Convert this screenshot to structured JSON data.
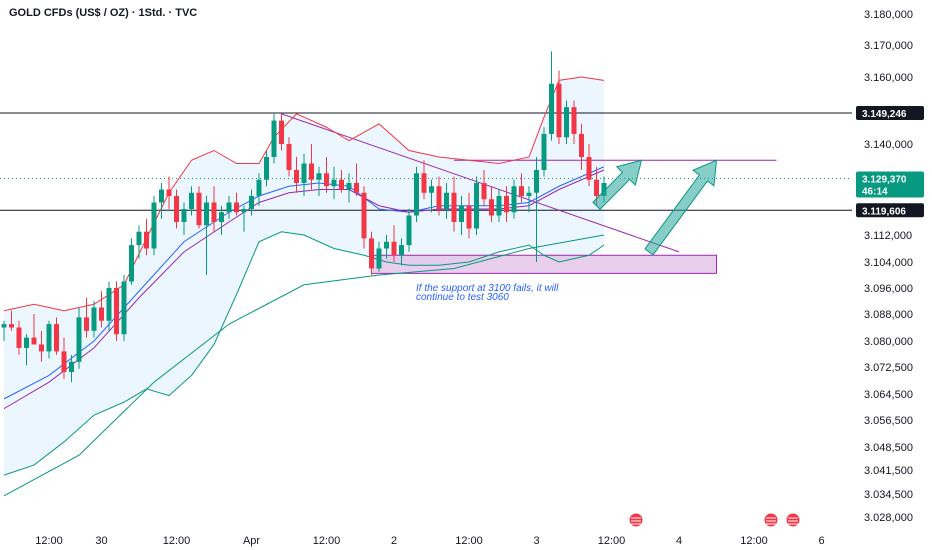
{
  "chart_data": {
    "type": "candlestick",
    "title": "GOLD CFDs (US$ / OZ) · 1Std. · TVC",
    "ylim": [
      3026000,
      3182000
    ],
    "y_ticks": [
      {
        "value": 3180000,
        "label": "3.180,000"
      },
      {
        "value": 3170000,
        "label": "3.170,000"
      },
      {
        "value": 3160000,
        "label": "3.160,000"
      },
      {
        "value": 3140000,
        "label": "3.140,000"
      },
      {
        "value": 3112000,
        "label": "3.112,000"
      },
      {
        "value": 3104000,
        "label": "3.104,000"
      },
      {
        "value": 3096000,
        "label": "3.096,000"
      },
      {
        "value": 3088000,
        "label": "3.088,000"
      },
      {
        "value": 3080000,
        "label": "3.080,000"
      },
      {
        "value": 3072500,
        "label": "3.072,500"
      },
      {
        "value": 3064500,
        "label": "3.064,500"
      },
      {
        "value": 3056500,
        "label": "3.056,500"
      },
      {
        "value": 3048500,
        "label": "3.048,500"
      },
      {
        "value": 3041500,
        "label": "3.041,500"
      },
      {
        "value": 3034500,
        "label": "3.034,500"
      },
      {
        "value": 3028000,
        "label": "3.028,000"
      }
    ],
    "x_ticks": [
      {
        "index": 6,
        "label": "12:00"
      },
      {
        "index": 13,
        "label": "30"
      },
      {
        "index": 23,
        "label": "12:00"
      },
      {
        "index": 33,
        "label": "Apr"
      },
      {
        "index": 43,
        "label": "12:00"
      },
      {
        "index": 52,
        "label": "2"
      },
      {
        "index": 62,
        "label": "12:00"
      },
      {
        "index": 71,
        "label": "3"
      },
      {
        "index": 81,
        "label": "12:00"
      },
      {
        "index": 90,
        "label": "4"
      },
      {
        "index": 100,
        "label": "12:00"
      },
      {
        "index": 109,
        "label": "6"
      }
    ],
    "x_range": [
      0,
      114
    ],
    "candles": [
      [
        3084,
        3086,
        3080,
        3085
      ],
      [
        3085,
        3089,
        3083,
        3084
      ],
      [
        3084,
        3086,
        3076,
        3078
      ],
      [
        3078,
        3082,
        3073,
        3081
      ],
      [
        3081,
        3088,
        3079,
        3079
      ],
      [
        3079,
        3083,
        3074,
        3077
      ],
      [
        3077,
        3086,
        3075,
        3085
      ],
      [
        3085,
        3087,
        3076,
        3077
      ],
      [
        3077,
        3081,
        3069,
        3071
      ],
      [
        3071,
        3076,
        3068,
        3074
      ],
      [
        3074,
        3090,
        3072,
        3087
      ],
      [
        3087,
        3093,
        3081,
        3083
      ],
      [
        3083,
        3092,
        3081,
        3090
      ],
      [
        3090,
        3095,
        3084,
        3086
      ],
      [
        3086,
        3098,
        3083,
        3096
      ],
      [
        3096,
        3098,
        3080,
        3082
      ],
      [
        3082,
        3100,
        3080,
        3098
      ],
      [
        3098,
        3111,
        3097,
        3109
      ],
      [
        3109,
        3115,
        3105,
        3113
      ],
      [
        3113,
        3117,
        3106,
        3108
      ],
      [
        3108,
        3124,
        3106,
        3122
      ],
      [
        3122,
        3128,
        3117,
        3126
      ],
      [
        3126,
        3130,
        3120,
        3124
      ],
      [
        3124,
        3126,
        3114,
        3116
      ],
      [
        3116,
        3122,
        3112,
        3120
      ],
      [
        3120,
        3127,
        3118,
        3125
      ],
      [
        3125,
        3127,
        3114,
        3115
      ],
      [
        3115,
        3124,
        3100,
        3122
      ],
      [
        3122,
        3127,
        3113,
        3116
      ],
      [
        3116,
        3121,
        3112,
        3119
      ],
      [
        3119,
        3124,
        3117,
        3122
      ],
      [
        3122,
        3125,
        3118,
        3119
      ],
      [
        3119,
        3121,
        3113,
        3120
      ],
      [
        3120,
        3126,
        3118,
        3124
      ],
      [
        3124,
        3131,
        3121,
        3129
      ],
      [
        3129,
        3138,
        3127,
        3136
      ],
      [
        3136,
        3149,
        3134,
        3147
      ],
      [
        3147,
        3149,
        3138,
        3140
      ],
      [
        3140,
        3142,
        3130,
        3132
      ],
      [
        3132,
        3136,
        3125,
        3128
      ],
      [
        3128,
        3137,
        3124,
        3134
      ],
      [
        3134,
        3140,
        3126,
        3129
      ],
      [
        3129,
        3133,
        3124,
        3131
      ],
      [
        3131,
        3136,
        3125,
        3127
      ],
      [
        3127,
        3133,
        3123,
        3129
      ],
      [
        3129,
        3132,
        3125,
        3126
      ],
      [
        3126,
        3131,
        3122,
        3128
      ],
      [
        3128,
        3134,
        3124,
        3125
      ],
      [
        3125,
        3127,
        3108,
        3111
      ],
      [
        3111,
        3113,
        3100,
        3102
      ],
      [
        3102,
        3110,
        3101,
        3108
      ],
      [
        3108,
        3112,
        3105,
        3110
      ],
      [
        3110,
        3115,
        3104,
        3106
      ],
      [
        3106,
        3111,
        3103,
        3109
      ],
      [
        3109,
        3120,
        3107,
        3118
      ],
      [
        3118,
        3133,
        3116,
        3131
      ],
      [
        3131,
        3135,
        3123,
        3125
      ],
      [
        3125,
        3129,
        3119,
        3127
      ],
      [
        3127,
        3130,
        3118,
        3120
      ],
      [
        3120,
        3128,
        3117,
        3125
      ],
      [
        3125,
        3130,
        3113,
        3116
      ],
      [
        3116,
        3124,
        3112,
        3121
      ],
      [
        3121,
        3125,
        3111,
        3114
      ],
      [
        3114,
        3130,
        3112,
        3128
      ],
      [
        3128,
        3132,
        3121,
        3123
      ],
      [
        3123,
        3127,
        3116,
        3118
      ],
      [
        3118,
        3126,
        3116,
        3124
      ],
      [
        3124,
        3127,
        3116,
        3119
      ],
      [
        3119,
        3129,
        3117,
        3127
      ],
      [
        3127,
        3131,
        3122,
        3124
      ],
      [
        3124,
        3127,
        3119,
        3125
      ],
      [
        3125,
        3136,
        3104,
        3132
      ],
      [
        3132,
        3145,
        3130,
        3143
      ],
      [
        3143,
        3168,
        3141,
        3158
      ],
      [
        3158,
        3162,
        3140,
        3142
      ],
      [
        3142,
        3153,
        3140,
        3151
      ],
      [
        3151,
        3153,
        3140,
        3143
      ],
      [
        3143,
        3146,
        3132,
        3136
      ],
      [
        3136,
        3140,
        3127,
        3129
      ],
      [
        3129,
        3133,
        3121,
        3124
      ],
      [
        3124,
        3130,
        3122,
        3128
      ]
    ],
    "series": [
      {
        "name": "",
        "color": "#f23645",
        "values": [
          [
            0,
            3089
          ],
          [
            4,
            3091
          ],
          [
            8,
            3089
          ],
          [
            12,
            3091
          ],
          [
            16,
            3097
          ],
          [
            19,
            3111
          ],
          [
            22,
            3125
          ],
          [
            25,
            3135
          ],
          [
            28,
            3138
          ],
          [
            31,
            3134
          ],
          [
            34,
            3134
          ],
          [
            36,
            3142
          ],
          [
            39,
            3149
          ],
          [
            43,
            3145
          ],
          [
            46,
            3141
          ],
          [
            50,
            3146
          ],
          [
            54,
            3138
          ],
          [
            58,
            3136
          ],
          [
            62,
            3135
          ],
          [
            66,
            3134
          ],
          [
            70,
            3136
          ],
          [
            72,
            3148
          ],
          [
            74,
            3159
          ],
          [
            77,
            3160
          ],
          [
            80,
            3159
          ]
        ]
      },
      {
        "name": "",
        "color": "#089981",
        "values": [
          [
            0,
            3040
          ],
          [
            4,
            3043
          ],
          [
            8,
            3050
          ],
          [
            12,
            3058
          ],
          [
            16,
            3062
          ],
          [
            19,
            3066
          ],
          [
            22,
            3064
          ],
          [
            25,
            3070
          ],
          [
            28,
            3079
          ],
          [
            31,
            3094
          ],
          [
            34,
            3110
          ],
          [
            37,
            3113
          ],
          [
            40,
            3112
          ],
          [
            44,
            3108
          ],
          [
            48,
            3106
          ],
          [
            51,
            3104
          ],
          [
            54,
            3103
          ],
          [
            58,
            3103
          ],
          [
            62,
            3104
          ],
          [
            66,
            3107
          ],
          [
            70,
            3109
          ],
          [
            72,
            3106
          ],
          [
            74,
            3104
          ],
          [
            78,
            3106
          ],
          [
            80,
            3109
          ]
        ]
      },
      {
        "name": "",
        "color": "#2962ff",
        "values": [
          [
            0,
            3063
          ],
          [
            6,
            3070
          ],
          [
            12,
            3080
          ],
          [
            18,
            3095
          ],
          [
            24,
            3110
          ],
          [
            30,
            3119
          ],
          [
            34,
            3124
          ],
          [
            38,
            3127
          ],
          [
            42,
            3128
          ],
          [
            46,
            3127
          ],
          [
            50,
            3120
          ],
          [
            54,
            3119
          ],
          [
            58,
            3121
          ],
          [
            62,
            3121
          ],
          [
            66,
            3121
          ],
          [
            70,
            3122
          ],
          [
            74,
            3127
          ],
          [
            78,
            3131
          ],
          [
            80,
            3133
          ]
        ]
      },
      {
        "name": "",
        "color": "#9c27b0",
        "values": [
          [
            0,
            3060
          ],
          [
            6,
            3068
          ],
          [
            12,
            3078
          ],
          [
            18,
            3093
          ],
          [
            24,
            3107
          ],
          [
            30,
            3116
          ],
          [
            34,
            3122
          ],
          [
            38,
            3125
          ],
          [
            42,
            3126
          ],
          [
            46,
            3126
          ],
          [
            50,
            3121
          ],
          [
            54,
            3119
          ],
          [
            58,
            3120
          ],
          [
            62,
            3120
          ],
          [
            66,
            3120
          ],
          [
            70,
            3121
          ],
          [
            74,
            3126
          ],
          [
            78,
            3130
          ],
          [
            80,
            3132
          ]
        ]
      },
      {
        "name": "",
        "color": "#089981",
        "values": [
          [
            0,
            3034
          ],
          [
            10,
            3046
          ],
          [
            20,
            3068
          ],
          [
            30,
            3085
          ],
          [
            40,
            3097
          ],
          [
            50,
            3100
          ],
          [
            60,
            3102
          ],
          [
            70,
            3108
          ],
          [
            80,
            3112
          ]
        ]
      }
    ],
    "horizontal_lines": [
      {
        "value": 3149246,
        "label": "3.149,246",
        "color": "#131722"
      },
      {
        "value": 3119606,
        "label": "3.119,606",
        "color": "#131722"
      }
    ],
    "current_price": {
      "value": 3129370,
      "label": "3.129,370",
      "countdown": "46:14",
      "color": "#089981"
    },
    "annotations": {
      "note": "If the support at 3100 fails, it will continue to test 3060",
      "support_zone": [
        3100500,
        3106000
      ],
      "support_zone_x": [
        49,
        95
      ],
      "trendline": {
        "from": [
          37,
          3149
        ],
        "to": [
          90,
          3107
        ]
      },
      "resistance_line": {
        "value": 3135000,
        "x": [
          60,
          103
        ]
      },
      "arrows": [
        {
          "from": [
            79,
            3121
          ],
          "to": [
            85,
            3135
          ]
        },
        {
          "from": [
            86,
            3107
          ],
          "to": [
            95,
            3135
          ]
        }
      ]
    },
    "grid": false,
    "legend": "none"
  }
}
